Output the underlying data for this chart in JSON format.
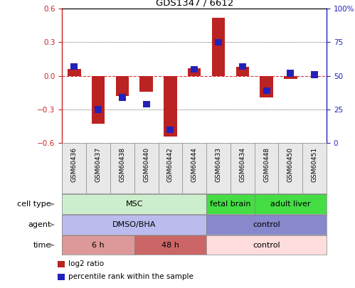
{
  "title": "GDS1347 / 6612",
  "samples": [
    "GSM60436",
    "GSM60437",
    "GSM60438",
    "GSM60440",
    "GSM60442",
    "GSM60444",
    "GSM60433",
    "GSM60434",
    "GSM60448",
    "GSM60450",
    "GSM60451"
  ],
  "log2_ratio": [
    0.06,
    -0.43,
    -0.18,
    -0.14,
    -0.54,
    0.07,
    0.52,
    0.08,
    -0.19,
    -0.03,
    0.0
  ],
  "percentile_rank": [
    57,
    25,
    34,
    29,
    10,
    55,
    75,
    57,
    39,
    52,
    51
  ],
  "ylim": [
    -0.6,
    0.6
  ],
  "yticks_left": [
    -0.6,
    -0.3,
    0.0,
    0.3,
    0.6
  ],
  "yticks_right": [
    0,
    25,
    50,
    75,
    100
  ],
  "bar_color": "#bb2222",
  "dot_color": "#2222bb",
  "zero_line_color": "#dd3333",
  "cell_type_groups": [
    {
      "label": "MSC",
      "start": 0,
      "end": 5,
      "color": "#cceecc"
    },
    {
      "label": "fetal brain",
      "start": 6,
      "end": 7,
      "color": "#44dd44"
    },
    {
      "label": "adult liver",
      "start": 8,
      "end": 10,
      "color": "#44dd44"
    }
  ],
  "agent_groups": [
    {
      "label": "DMSO/BHA",
      "start": 0,
      "end": 5,
      "color": "#bbbbee"
    },
    {
      "label": "control",
      "start": 6,
      "end": 10,
      "color": "#8888cc"
    }
  ],
  "time_groups": [
    {
      "label": "6 h",
      "start": 0,
      "end": 2,
      "color": "#dd9999"
    },
    {
      "label": "48 h",
      "start": 3,
      "end": 5,
      "color": "#cc6666"
    },
    {
      "label": "control",
      "start": 6,
      "end": 10,
      "color": "#ffdddd"
    }
  ],
  "row_labels": [
    "cell type",
    "agent",
    "time"
  ],
  "legend_items": [
    {
      "label": "log2 ratio",
      "color": "#bb2222"
    },
    {
      "label": "percentile rank within the sample",
      "color": "#2222bb"
    }
  ]
}
